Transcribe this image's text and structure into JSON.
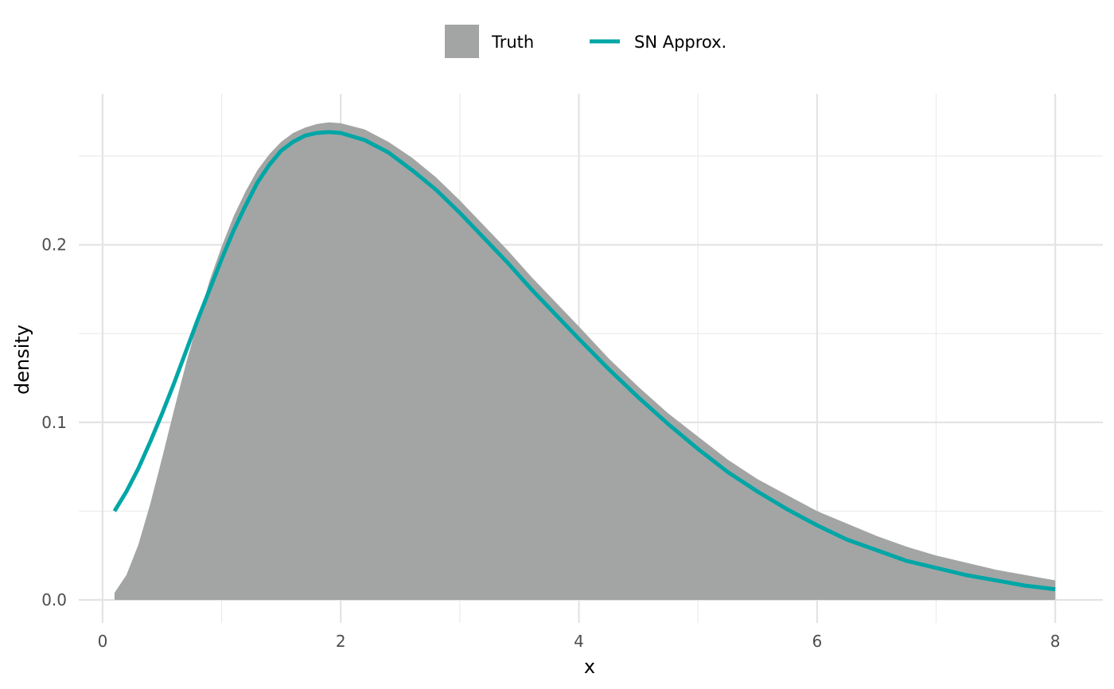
{
  "chart_data": {
    "type": "area",
    "xlabel": "x",
    "ylabel": "density",
    "xlim": [
      -0.2,
      8.4
    ],
    "ylim": [
      -0.013,
      0.285
    ],
    "x_ticks": [
      0,
      2,
      4,
      6,
      8
    ],
    "x_tick_labels": [
      "0",
      "2",
      "4",
      "6",
      "8"
    ],
    "y_ticks": [
      0.0,
      0.1,
      0.2
    ],
    "y_tick_labels": [
      "0.0",
      "0.1",
      "0.2"
    ],
    "grid": true,
    "legend_position": "top",
    "series": [
      {
        "name": "Truth",
        "kind": "area",
        "color": "#a3a5a4",
        "x": [
          0.1,
          0.2,
          0.3,
          0.4,
          0.5,
          0.6,
          0.7,
          0.8,
          0.9,
          1.0,
          1.1,
          1.2,
          1.3,
          1.4,
          1.5,
          1.6,
          1.7,
          1.8,
          1.9,
          2.0,
          2.2,
          2.4,
          2.6,
          2.8,
          3.0,
          3.2,
          3.4,
          3.6,
          3.8,
          4.0,
          4.25,
          4.5,
          4.75,
          5.0,
          5.25,
          5.5,
          5.75,
          6.0,
          6.25,
          6.5,
          6.75,
          7.0,
          7.25,
          7.5,
          7.75,
          8.0
        ],
        "y": [
          0.004,
          0.014,
          0.031,
          0.054,
          0.08,
          0.107,
          0.133,
          0.157,
          0.18,
          0.199,
          0.216,
          0.23,
          0.242,
          0.251,
          0.258,
          0.263,
          0.266,
          0.268,
          0.269,
          0.2685,
          0.265,
          0.258,
          0.249,
          0.238,
          0.225,
          0.211,
          0.197,
          0.182,
          0.168,
          0.154,
          0.136,
          0.12,
          0.105,
          0.092,
          0.079,
          0.068,
          0.059,
          0.05,
          0.043,
          0.036,
          0.03,
          0.025,
          0.021,
          0.017,
          0.014,
          0.011
        ]
      },
      {
        "name": "SN Approx.",
        "kind": "line",
        "color": "#00a6a6",
        "x": [
          0.1,
          0.2,
          0.3,
          0.4,
          0.5,
          0.6,
          0.7,
          0.8,
          0.9,
          1.0,
          1.1,
          1.2,
          1.3,
          1.4,
          1.5,
          1.6,
          1.7,
          1.8,
          1.9,
          2.0,
          2.2,
          2.4,
          2.6,
          2.8,
          3.0,
          3.2,
          3.4,
          3.6,
          3.8,
          4.0,
          4.25,
          4.5,
          4.75,
          5.0,
          5.25,
          5.5,
          5.75,
          6.0,
          6.25,
          6.5,
          6.75,
          7.0,
          7.25,
          7.5,
          7.75,
          8.0
        ],
        "y": [
          0.05,
          0.061,
          0.074,
          0.089,
          0.105,
          0.122,
          0.14,
          0.158,
          0.175,
          0.192,
          0.208,
          0.222,
          0.235,
          0.245,
          0.253,
          0.258,
          0.2615,
          0.263,
          0.2635,
          0.263,
          0.259,
          0.252,
          0.242,
          0.231,
          0.218,
          0.204,
          0.19,
          0.175,
          0.161,
          0.147,
          0.13,
          0.114,
          0.099,
          0.085,
          0.072,
          0.061,
          0.051,
          0.042,
          0.034,
          0.028,
          0.022,
          0.018,
          0.014,
          0.011,
          0.008,
          0.006
        ]
      }
    ]
  }
}
